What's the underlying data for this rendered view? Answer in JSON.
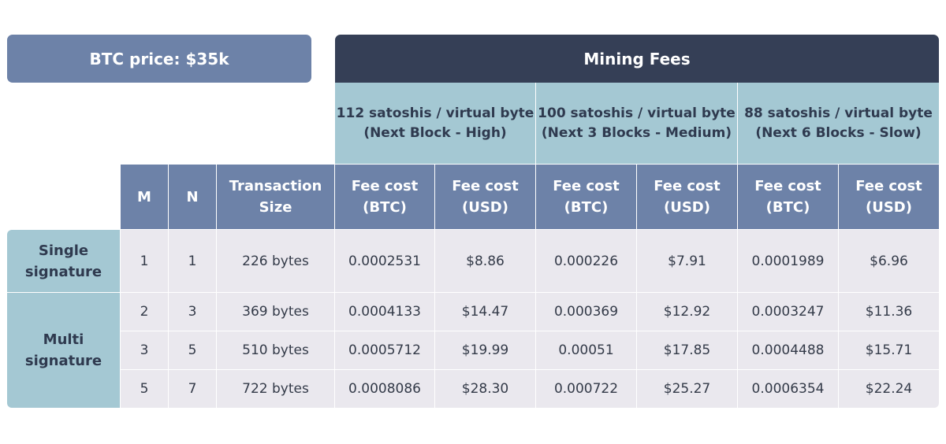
{
  "price_label": "BTC price: $35k",
  "mining_label": "Mining Fees",
  "rates": [
    {
      "line1": "112 satoshis / virtual byte",
      "line2": "(Next Block - High)"
    },
    {
      "line1": "100 satoshis / virtual byte",
      "line2": "(Next 3 Blocks - Medium)"
    },
    {
      "line1": "88 satoshis / virtual byte",
      "line2": "(Next 6 Blocks - Slow)"
    }
  ],
  "headers": {
    "m": "M",
    "n": "N",
    "size": [
      "Transaction",
      "Size"
    ],
    "fee_btc": [
      "Fee cost",
      "(BTC)"
    ],
    "fee_usd": [
      "Fee cost",
      "(USD)"
    ]
  },
  "groups": [
    {
      "line1": "Single",
      "line2": "signature"
    },
    {
      "line1": "Multi",
      "line2": "signature"
    }
  ],
  "rows": [
    {
      "m": "1",
      "n": "1",
      "size": "226 bytes",
      "fees": [
        "0.0002531",
        "$8.86",
        "0.000226",
        "$7.91",
        "0.0001989",
        "$6.96"
      ]
    },
    {
      "m": "2",
      "n": "3",
      "size": "369 bytes",
      "fees": [
        "0.0004133",
        "$14.47",
        "0.000369",
        "$12.92",
        "0.0003247",
        "$11.36"
      ]
    },
    {
      "m": "3",
      "n": "5",
      "size": "510 bytes",
      "fees": [
        "0.0005712",
        "$19.99",
        "0.00051",
        "$17.85",
        "0.0004488",
        "$15.71"
      ]
    },
    {
      "m": "5",
      "n": "7",
      "size": "722 bytes",
      "fees": [
        "0.0008086",
        "$28.30",
        "0.000722",
        "$25.27",
        "0.0006354",
        "$22.24"
      ]
    }
  ]
}
